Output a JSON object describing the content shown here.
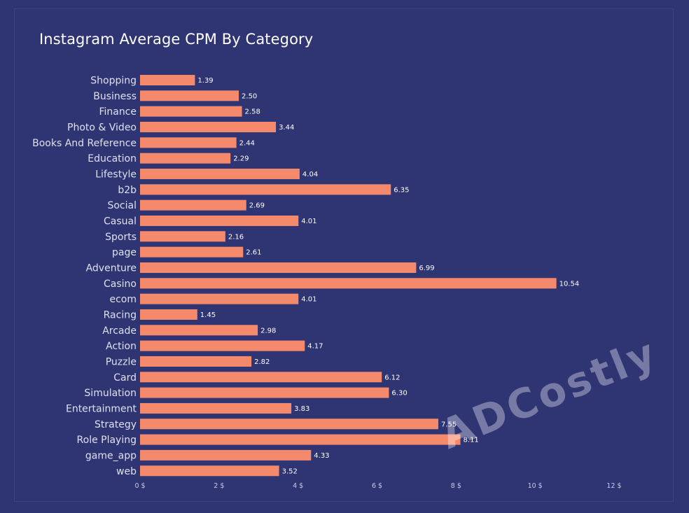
{
  "watermark": "ADCostly",
  "chart_data": {
    "type": "bar",
    "orientation": "horizontal",
    "title": "Instagram Average CPM By Category",
    "xlabel": "",
    "ylabel": "",
    "xlim": [
      0,
      12
    ],
    "x_ticks": [
      "0 $",
      "2 $",
      "4 $",
      "6 $",
      "8 $",
      "10 $",
      "12 $"
    ],
    "grid": false,
    "bar_color": "#f4896b",
    "background_color": "#2f3473",
    "categories": [
      "Shopping",
      "Business",
      "Finance",
      "Photo & Video",
      "Books And Reference",
      "Education",
      "Lifestyle",
      "b2b",
      "Social",
      "Casual",
      "Sports",
      "page",
      "Adventure",
      "Casino",
      "ecom",
      "Racing",
      "Arcade",
      "Action",
      "Puzzle",
      "Card",
      "Simulation",
      "Entertainment",
      "Strategy",
      "Role Playing",
      "game_app",
      "web"
    ],
    "values": [
      1.39,
      2.5,
      2.58,
      3.44,
      2.44,
      2.29,
      4.04,
      6.35,
      2.69,
      4.01,
      2.16,
      2.61,
      6.99,
      10.54,
      4.01,
      1.45,
      2.98,
      4.17,
      2.82,
      6.12,
      6.3,
      3.83,
      7.55,
      8.11,
      4.33,
      3.52
    ],
    "value_labels": [
      "1.39",
      "2.50",
      "2.58",
      "3.44",
      "2.44",
      "2.29",
      "4.04",
      "6.35",
      "2.69",
      "4.01",
      "2.16",
      "2.61",
      "6.99",
      "10.54",
      "4.01",
      "1.45",
      "2.98",
      "4.17",
      "2.82",
      "6.12",
      "6.30",
      "3.83",
      "7.55",
      "8.11",
      "4.33",
      "3.52"
    ]
  }
}
